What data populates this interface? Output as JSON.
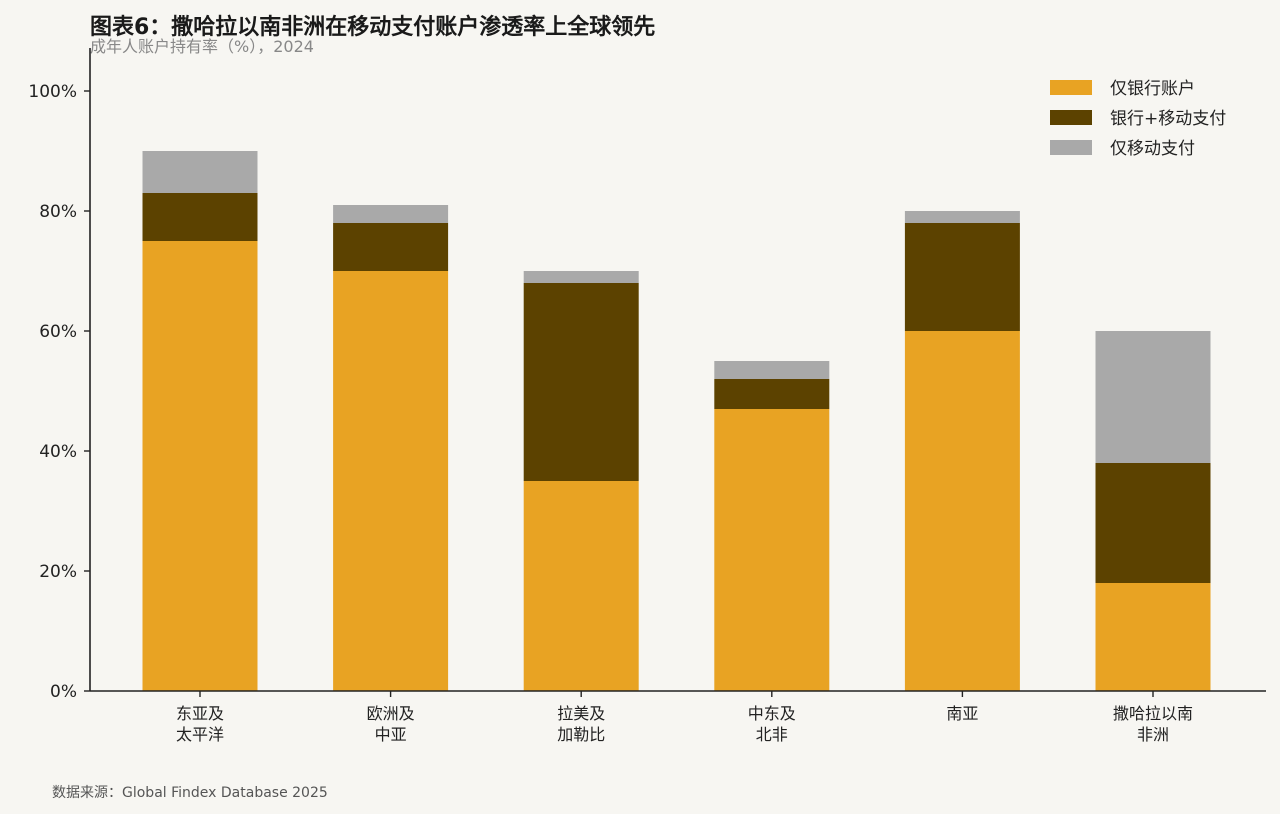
{
  "title": "图表6：撒哈拉以南非洲在移动支付账户渗透率上全球领先",
  "subtitle": "成年人账户持有率（%），2024",
  "source": "数据来源：Global Findex Database 2025",
  "colors": {
    "bank_only": "#e8a323",
    "bank_and_mobile": "#5c4200",
    "mobile_only": "#a9a9a9",
    "axis": "#222222",
    "background": "#f7f6f2"
  },
  "chart_data": {
    "type": "bar",
    "stacked": true,
    "categories": [
      [
        "东亚及",
        "太平洋"
      ],
      [
        "欧洲及",
        "中亚"
      ],
      [
        "拉美及",
        "加勒比"
      ],
      [
        "中东及",
        "北非"
      ],
      [
        "南亚"
      ],
      [
        "撒哈拉以南",
        "非洲"
      ]
    ],
    "series": [
      {
        "name": "仅银行账户",
        "color": "#e8a323",
        "values": [
          75,
          70,
          35,
          47,
          60,
          18
        ]
      },
      {
        "name": "银行+移动支付",
        "color": "#5c4200",
        "values": [
          8,
          8,
          33,
          5,
          18,
          20
        ]
      },
      {
        "name": "仅移动支付",
        "color": "#a9a9a9",
        "values": [
          7,
          3,
          2,
          3,
          2,
          22
        ]
      }
    ],
    "ylim": [
      0,
      105
    ],
    "yticks": [
      0,
      20,
      40,
      60,
      80,
      100
    ],
    "ytick_labels": [
      "0%",
      "20%",
      "40%",
      "60%",
      "80%",
      "100%"
    ],
    "grid": false,
    "legend_position": "top-right"
  }
}
